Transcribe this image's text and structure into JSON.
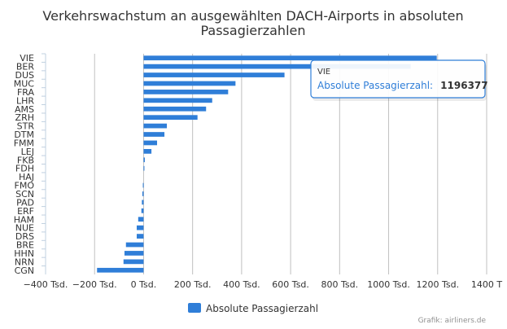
{
  "chart_data": {
    "type": "bar",
    "orientation": "horizontal",
    "title_line1": "Verkehrswachstum an ausgewählten DACH-Airports in absoluten",
    "title_line2": "Passagierzahlen",
    "categories": [
      "VIE",
      "BER",
      "DUS",
      "MUC",
      "FRA",
      "LHR",
      "AMS",
      "ZRH",
      "STR",
      "DTM",
      "FMM",
      "LEJ",
      "FKB",
      "FDH",
      "HAJ",
      "FMO",
      "SCN",
      "PAD",
      "ERF",
      "HAM",
      "NUE",
      "DRS",
      "BRE",
      "HHN",
      "NRN",
      "CGN"
    ],
    "series": [
      {
        "name": "Absolute Passagierzahl",
        "color": "#2f7ed8",
        "values": [
          1196377,
          1090000,
          575000,
          375000,
          345000,
          280000,
          255000,
          220000,
          95000,
          85000,
          55000,
          32000,
          5000,
          1500,
          0,
          -3000,
          -5000,
          -7000,
          -9000,
          -22000,
          -28000,
          -28000,
          -72000,
          -78000,
          -82000,
          -190000
        ]
      }
    ],
    "xlim": [
      -400000,
      1400000
    ],
    "xticks": [
      -400000,
      -200000,
      0,
      200000,
      400000,
      600000,
      800000,
      1000000,
      1200000,
      1400000
    ],
    "xtick_labels": [
      "−400 Tsd.",
      "−200 Tsd.",
      "0 Tsd.",
      "200 Tsd.",
      "400 Tsd.",
      "600 Tsd.",
      "800 Tsd.",
      "1000 Tsd.",
      "1200 Tsd.",
      "1400 T"
    ],
    "legend_label": "Absolute Passagierzahl",
    "legend_position": "bottom-center",
    "grid": true
  },
  "tooltip": {
    "category": "VIE",
    "label": "Absolute Passagierzahl:",
    "value": "1196377"
  },
  "credit": "Grafik: airliners.de"
}
